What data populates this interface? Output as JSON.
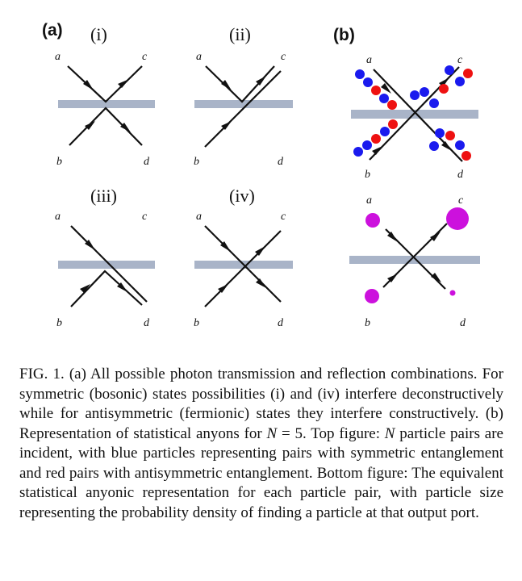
{
  "panels": {
    "a": {
      "tag": "(a)",
      "subpanels": [
        {
          "label": "(i)",
          "ports": {
            "a": "a",
            "b": "b",
            "c": "c",
            "d": "d"
          }
        },
        {
          "label": "(ii)",
          "ports": {
            "a": "a",
            "b": "b",
            "c": "c",
            "d": "d"
          }
        },
        {
          "label": "(iii)",
          "ports": {
            "a": "a",
            "b": "b",
            "c": "c",
            "d": "d"
          }
        },
        {
          "label": "(iv)",
          "ports": {
            "a": "a",
            "b": "b",
            "c": "c",
            "d": "d"
          }
        }
      ]
    },
    "b": {
      "tag": "(b)",
      "top_ports": {
        "a": "a",
        "b": "b",
        "c": "c",
        "d": "d"
      },
      "bottom_ports": {
        "a": "a",
        "b": "b",
        "c": "c",
        "d": "d"
      }
    }
  },
  "colors": {
    "splitter": "#a9b4c8",
    "symmetric_particle": "#1a1aee",
    "antisymmetric_particle": "#ee1111",
    "anyon_particle": "#cc11dd",
    "beam": "#111111"
  },
  "caption": {
    "p1": "FIG. 1.  (a) All possible photon transmission and reflection combinations. For symmetric (bosonic) states possibilities (i) and (iv) interfere deconstructively while for antisymmetric (fermionic) states they interfere constructively. (b) Representation of statistical anyons for ",
    "var_n": "N",
    "eq": " = 5. Top figure: ",
    "var_n2": "N",
    "p2": " particle pairs are incident, with blue particles representing pairs with symmetric entanglement and red pairs with antisymmetric entanglement. Bottom figure: The equivalent statistical anyonic representation for each particle pair, with particle size representing the probability density of finding a particle at that output port."
  }
}
